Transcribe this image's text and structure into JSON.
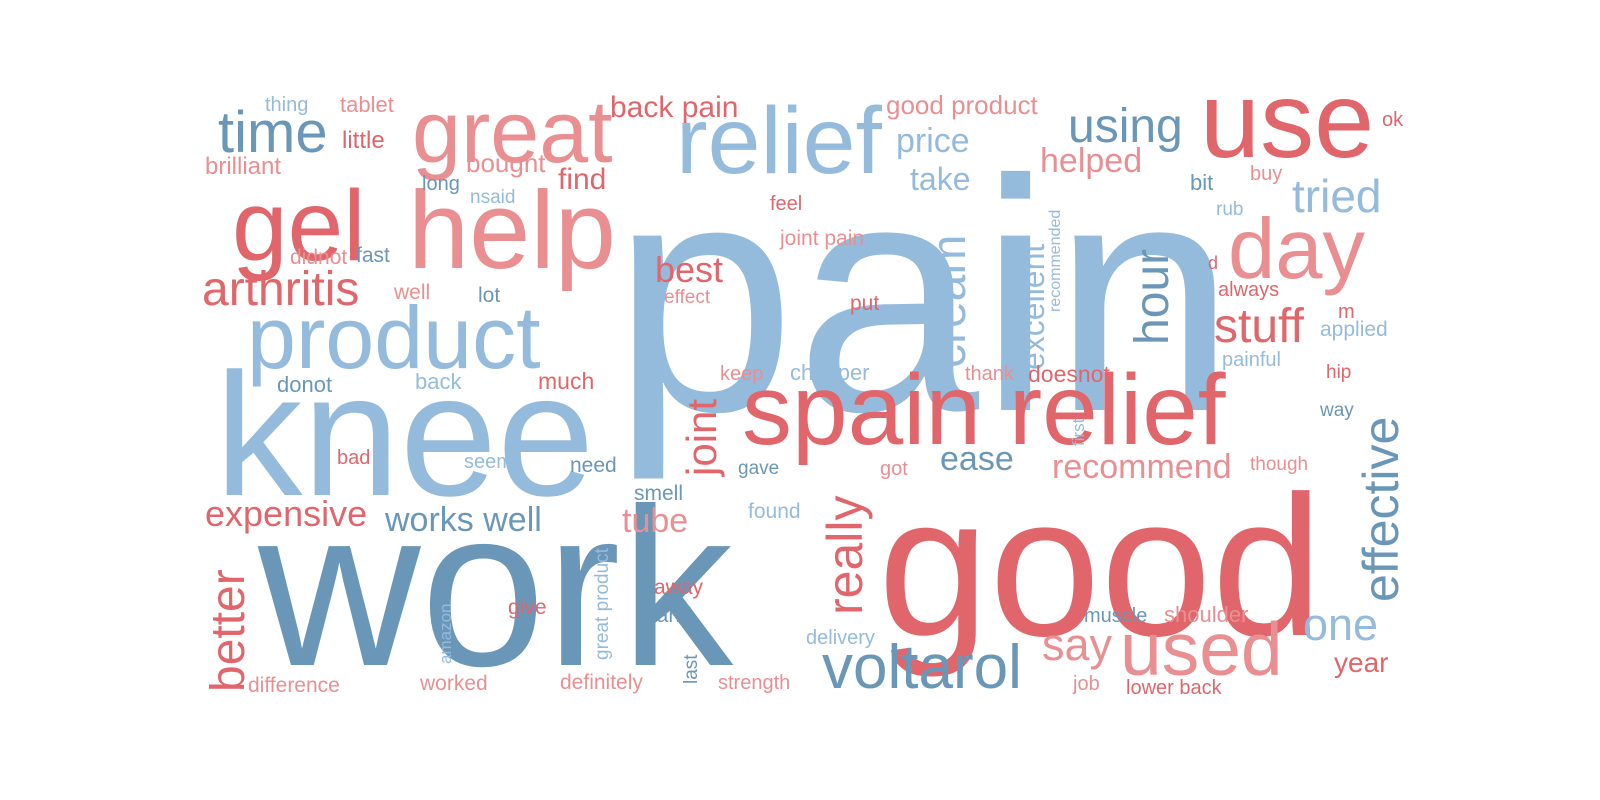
{
  "palette": {
    "blue_light": "#95bbdc",
    "blue_dark": "#6a97b8",
    "red": "#e0666c",
    "red_light": "#e98f92"
  },
  "words": [
    {
      "text": "pain",
      "color": "blue_light"
    },
    {
      "text": "good",
      "color": "red"
    },
    {
      "text": "work",
      "color": "blue_dark"
    },
    {
      "text": "knee",
      "color": "blue_light"
    },
    {
      "text": "relief",
      "color": "blue_light"
    },
    {
      "text": "use",
      "color": "red"
    },
    {
      "text": "great",
      "color": "red_light"
    },
    {
      "text": "help",
      "color": "red_light"
    },
    {
      "text": "gel",
      "color": "red"
    },
    {
      "text": "product",
      "color": "blue_light"
    },
    {
      "text": "spain relief",
      "color": "red"
    },
    {
      "text": "day",
      "color": "red_light"
    },
    {
      "text": "time",
      "color": "blue_dark"
    },
    {
      "text": "arthritis",
      "color": "red"
    },
    {
      "text": "used",
      "color": "red_light"
    },
    {
      "text": "voltarol",
      "color": "blue_dark"
    },
    {
      "text": "effective",
      "color": "blue_dark"
    },
    {
      "text": "cream",
      "color": "blue_light"
    },
    {
      "text": "using",
      "color": "blue_dark"
    },
    {
      "text": "stuff",
      "color": "red"
    },
    {
      "text": "tried",
      "color": "blue_light"
    },
    {
      "text": "hour",
      "color": "blue_dark"
    },
    {
      "text": "really",
      "color": "red"
    },
    {
      "text": "better",
      "color": "red"
    },
    {
      "text": "joint",
      "color": "red"
    },
    {
      "text": "one",
      "color": "blue_light"
    },
    {
      "text": "say",
      "color": "red_light"
    },
    {
      "text": "best",
      "color": "red"
    },
    {
      "text": "ease",
      "color": "blue_dark"
    },
    {
      "text": "recommend",
      "color": "red_light"
    },
    {
      "text": "expensive",
      "color": "red"
    },
    {
      "text": "works well",
      "color": "blue_dark"
    },
    {
      "text": "tube",
      "color": "red_light"
    },
    {
      "text": "excellent",
      "color": "blue_light"
    },
    {
      "text": "helped",
      "color": "red_light"
    },
    {
      "text": "price",
      "color": "blue_light"
    },
    {
      "text": "take",
      "color": "blue_light"
    },
    {
      "text": "back pain",
      "color": "red"
    },
    {
      "text": "good product",
      "color": "red_light"
    },
    {
      "text": "year",
      "color": "red"
    },
    {
      "text": "find",
      "color": "red"
    },
    {
      "text": "bought",
      "color": "red_light"
    },
    {
      "text": "little",
      "color": "red"
    },
    {
      "text": "brilliant",
      "color": "red_light"
    },
    {
      "text": "thing",
      "color": "blue_light"
    },
    {
      "text": "tablet",
      "color": "red_light"
    },
    {
      "text": "ok",
      "color": "red"
    },
    {
      "text": "long",
      "color": "blue_dark"
    },
    {
      "text": "nsaid",
      "color": "blue_light"
    },
    {
      "text": "feel",
      "color": "red"
    },
    {
      "text": "joint pain",
      "color": "red_light"
    },
    {
      "text": "bit",
      "color": "blue_dark"
    },
    {
      "text": "buy",
      "color": "red_light"
    },
    {
      "text": "rub",
      "color": "blue_light"
    },
    {
      "text": "recommended",
      "color": "blue_light"
    },
    {
      "text": "didnot",
      "color": "red_light"
    },
    {
      "text": "fast",
      "color": "blue_dark"
    },
    {
      "text": "well",
      "color": "red_light"
    },
    {
      "text": "lot",
      "color": "blue_dark"
    },
    {
      "text": "effect",
      "color": "red_light"
    },
    {
      "text": "put",
      "color": "red"
    },
    {
      "text": "d",
      "color": "red"
    },
    {
      "text": "always",
      "color": "red"
    },
    {
      "text": "m",
      "color": "red"
    },
    {
      "text": "applied",
      "color": "blue_light"
    },
    {
      "text": "painful",
      "color": "blue_light"
    },
    {
      "text": "donot",
      "color": "blue_dark"
    },
    {
      "text": "back",
      "color": "blue_light"
    },
    {
      "text": "much",
      "color": "red"
    },
    {
      "text": "keep",
      "color": "red_light"
    },
    {
      "text": "cheaper",
      "color": "blue_light"
    },
    {
      "text": "thank",
      "color": "red_light"
    },
    {
      "text": "doesnot",
      "color": "red"
    },
    {
      "text": "hip",
      "color": "red"
    },
    {
      "text": "way",
      "color": "blue_dark"
    },
    {
      "text": "first",
      "color": "blue_light"
    },
    {
      "text": "bad",
      "color": "red"
    },
    {
      "text": "seem",
      "color": "blue_light"
    },
    {
      "text": "need",
      "color": "blue_dark"
    },
    {
      "text": "gave",
      "color": "blue_dark"
    },
    {
      "text": "got",
      "color": "red_light"
    },
    {
      "text": "though",
      "color": "red_light"
    },
    {
      "text": "smell",
      "color": "blue_dark"
    },
    {
      "text": "found",
      "color": "blue_light"
    },
    {
      "text": "give",
      "color": "red"
    },
    {
      "text": "away",
      "color": "red"
    },
    {
      "text": "hand",
      "color": "blue_dark"
    },
    {
      "text": "great product",
      "color": "blue_light"
    },
    {
      "text": "amazon",
      "color": "blue_light"
    },
    {
      "text": "last",
      "color": "blue_dark"
    },
    {
      "text": "delivery",
      "color": "blue_light"
    },
    {
      "text": "muscle",
      "color": "blue_dark"
    },
    {
      "text": "shoulder",
      "color": "red_light"
    },
    {
      "text": "difference",
      "color": "red_light"
    },
    {
      "text": "worked",
      "color": "red_light"
    },
    {
      "text": "definitely",
      "color": "red_light"
    },
    {
      "text": "strength",
      "color": "red_light"
    },
    {
      "text": "job",
      "color": "red_light"
    },
    {
      "text": "lower back",
      "color": "red"
    }
  ]
}
